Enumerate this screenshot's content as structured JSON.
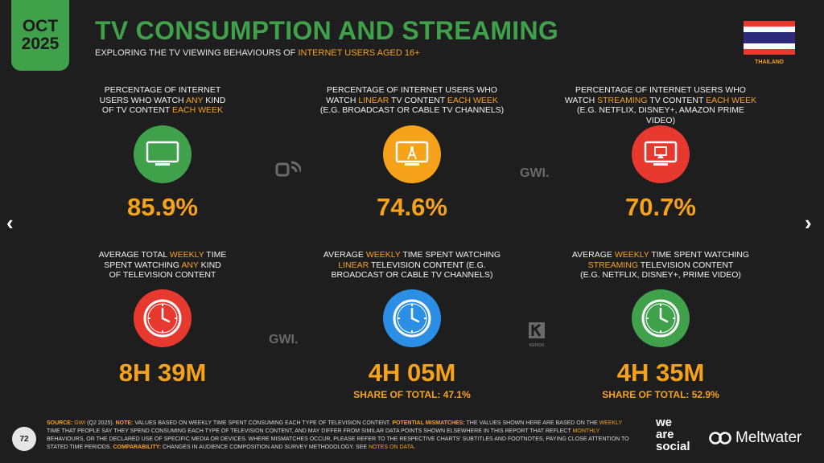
{
  "header": {
    "date_line1": "OCT",
    "date_line2": "2025",
    "title": "TV CONSUMPTION AND STREAMING",
    "subtitle_prefix": "EXPLORING THE TV VIEWING BEHAVIOURS OF ",
    "subtitle_highlight": "INTERNET USERS AGED 16+",
    "country": "THAILAND"
  },
  "row1": [
    {
      "l1a": "PERCENTAGE OF INTERNET",
      "l2a": "USERS WHO WATCH ",
      "l2h": "ANY",
      "l2b": " KIND",
      "l3a": "OF TV CONTENT ",
      "l3h": "EACH WEEK",
      "l3b": "",
      "value": "85.9%",
      "icon": "tv-icon",
      "color": "#3fa24b"
    },
    {
      "l1a": "PERCENTAGE OF INTERNET USERS WHO",
      "l2a": "WATCH ",
      "l2h": "LINEAR",
      "l2b": " TV CONTENT ",
      "l2h2": "EACH WEEK",
      "l3a": "(E.G. BROADCAST OR CABLE TV CHANNELS)",
      "value": "74.6%",
      "icon": "broadcast-tv-icon",
      "color": "#f7a21b"
    },
    {
      "l1a": "PERCENTAGE OF INTERNET USERS WHO",
      "l2a": "WATCH ",
      "l2h": "STREAMING",
      "l2b": " TV CONTENT ",
      "l2h2": "EACH WEEK",
      "l3a": "(E.G. NETFLIX, DISNEY+, AMAZON PRIME VIDEO)",
      "value": "70.7%",
      "icon": "streaming-tv-icon",
      "color": "#e8392f"
    }
  ],
  "row2": [
    {
      "l1a": "AVERAGE TOTAL ",
      "l1h": "WEEKLY",
      "l1b": " TIME",
      "l2a": "SPENT WATCHING ",
      "l2h": "ANY",
      "l2b": " KIND",
      "l3a": "OF TELEVISION CONTENT",
      "value": "8H 39M",
      "share": "",
      "icon": "clock-icon",
      "color": "#e8392f"
    },
    {
      "l1a": "AVERAGE ",
      "l1h": "WEEKLY",
      "l1b": " TIME SPENT WATCHING",
      "l2h": "LINEAR",
      "l2b": " TELEVISION CONTENT (E.G.",
      "l3a": "BROADCAST OR CABLE TV CHANNELS)",
      "value": "4H 05M",
      "share": "SHARE OF TOTAL: 47.1%",
      "icon": "clock-icon",
      "color": "#2b8fe5"
    },
    {
      "l1a": "AVERAGE ",
      "l1h": "WEEKLY",
      "l1b": " TIME SPENT WATCHING",
      "l2h": "STREAMING",
      "l2b": " TELEVISION CONTENT",
      "l3a": "(E.G. NETFLIX, DISNEY+, PRIME VIDEO)",
      "value": "4H 35M",
      "share": "SHARE OF TOTAL: 52.9%",
      "icon": "clock-icon",
      "color": "#3fa24b"
    }
  ],
  "watermarks": {
    "gwi": "GWI.",
    "kepios": "KEPIOS"
  },
  "footer": {
    "source_label": "SOURCE:",
    "source_gwi": "GWI",
    "source_rest": " (Q2 2025). ",
    "note_label": "NOTE:",
    "note_text": " VALUES BASED ON WEEKLY TIME SPENT CONSUMING EACH TYPE OF TELEVISION CONTENT. ",
    "pm_label": "POTENTIAL MISMATCHES:",
    "pm_text1": " THE VALUES SHOWN HERE ARE BASED ON THE ",
    "pm_weekly": "WEEKLY",
    "pm_text2": " TIME THAT PEOPLE SAY THEY SPEND CONSUMING EACH TYPE OF TELEVISION CONTENT, AND MAY DIFFER FROM SIMILAR DATA POINTS SHOWN ELSEWHERE IN THIS REPORT THAT REFLECT ",
    "pm_monthly": "MONTHLY",
    "pm_text3": " BEHAVIOURS, OR THE DECLARED USE OF SPECIFIC MEDIA OR DEVICES. WHERE MISMATCHES OCCUR, PLEASE REFER TO THE RESPECTIVE CHARTS' SUBTITLES AND FOOTNOTES, PAYING CLOSE ATTENTION TO STATED TIME PERIODS. ",
    "comp_label": "COMPARABILITY:",
    "comp_text": " CHANGES IN AUDIENCE COMPOSITION AND SURVEY METHODOLOGY. SEE ",
    "comp_link": "NOTES ON DATA",
    "comp_end": ".",
    "page_number": "72",
    "brand1_l1": "we",
    "brand1_l2": "are",
    "brand1_l3": "social",
    "brand2": "Meltwater"
  },
  "nav": {
    "prev": "‹",
    "next": "›"
  }
}
